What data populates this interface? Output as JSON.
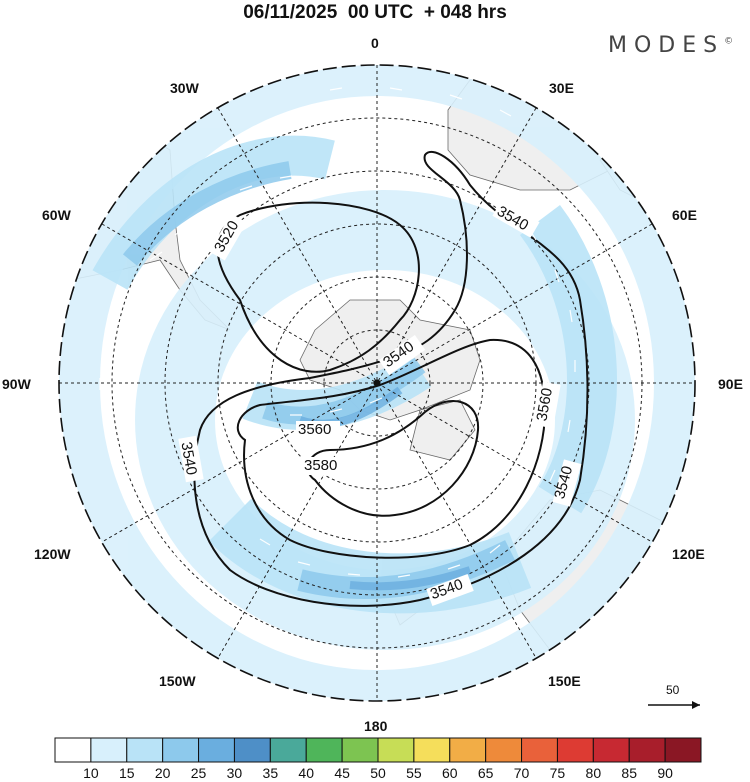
{
  "title": "06/11/2025  00 UTC  + 048 hrs",
  "brand": {
    "name": "MODES",
    "mark": "©"
  },
  "longitude_labels": {
    "lon_0": "0",
    "lon_30e": "30E",
    "lon_60e": "60E",
    "lon_90e": "90E",
    "lon_120e": "120E",
    "lon_150e": "150E",
    "lon_180": "180",
    "lon_150w": "150W",
    "lon_120w": "120W",
    "lon_90w": "90W",
    "lon_60w": "60W",
    "lon_30w": "30W"
  },
  "contour_labels": [
    "3520",
    "3540",
    "3540",
    "3560",
    "3580",
    "3540",
    "3560",
    "3540",
    "3540"
  ],
  "vector_scale": {
    "label": "50",
    "arrow_icon": "right-arrow-icon"
  },
  "colorbar": {
    "labels": [
      "10",
      "15",
      "20",
      "25",
      "30",
      "35",
      "40",
      "45",
      "50",
      "55",
      "60",
      "65",
      "70",
      "75",
      "80",
      "85",
      "90"
    ],
    "colors": [
      "#ffffff",
      "#d8f0fc",
      "#b9e3f7",
      "#8dc9ec",
      "#6aaedf",
      "#4e8fc7",
      "#4aa99a",
      "#4fb55a",
      "#7dc451",
      "#c7dd56",
      "#f5de5b",
      "#f2ad46",
      "#ee8a3a",
      "#e9613a",
      "#dd3b33",
      "#c72932",
      "#a81e2b",
      "#8a1724"
    ]
  }
}
